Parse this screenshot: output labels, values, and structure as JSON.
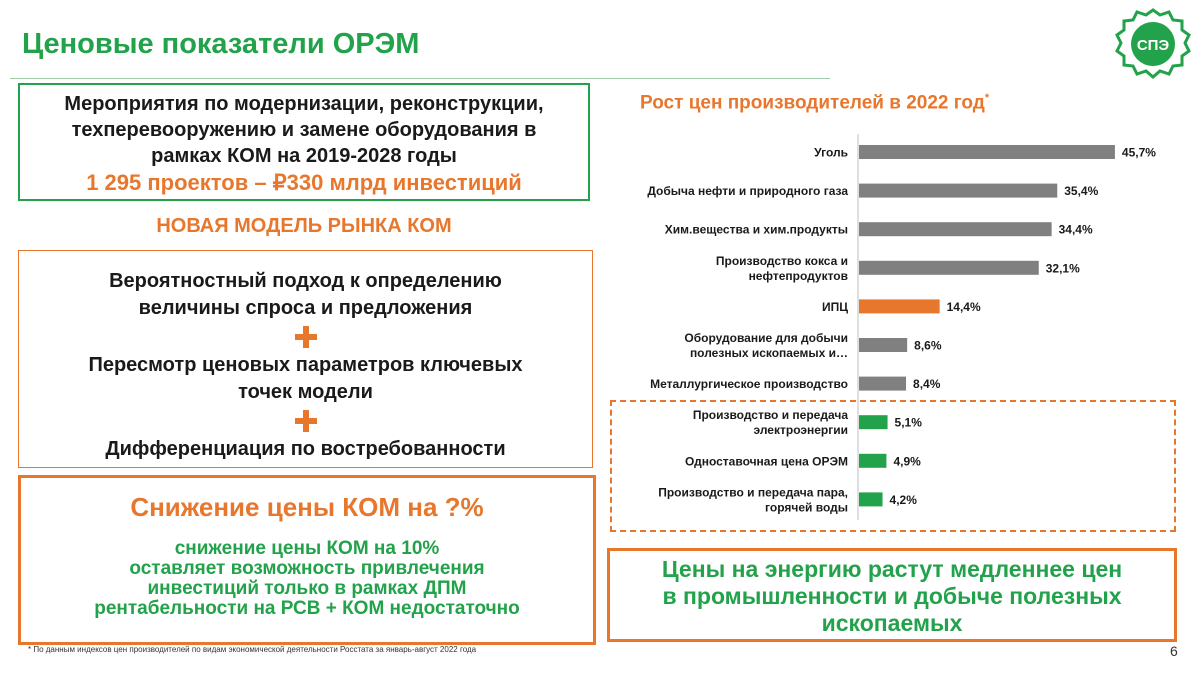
{
  "header": {
    "title": "Ценовые показатели ОРЭМ",
    "logo_text": "СПЭ"
  },
  "box1": {
    "lines": [
      "Мероприятия по модернизации, реконструкции,",
      "техперевооружению и замене оборудования в",
      "рамках КОМ на 2019-2028 годы"
    ],
    "highlight": "1 295 проектов – ₽330 млрд инвестиций"
  },
  "model_label": "НОВАЯ МОДЕЛЬ РЫНКА КОМ",
  "box2": {
    "item1_line1": "Вероятностный подход к определению",
    "item1_line2": "величины спроса и предложения",
    "item2_line1": "Пересмотр ценовых параметров ключевых",
    "item2_line2": "точек модели",
    "item3": "Дифференциация по востребованности"
  },
  "box3": {
    "title": "Снижение цены КОМ на ?%",
    "body_lines": [
      "снижение цены КОМ на 10%",
      "оставляет возможность привлечения",
      "инвестиций только в рамках ДПМ",
      "рентабельности на РСВ + КОМ недостаточно"
    ]
  },
  "box4": {
    "lines": [
      "Цены на энергию растут медленнее цен",
      "в промышленности и добыче полезных",
      "ископаемых"
    ]
  },
  "footnote": "* По данным индексов цен производителей по видам экономической деятельности Росстата за январь-август 2022 года",
  "page_number": "6",
  "colors": {
    "green": "#22a24a",
    "orange": "#e8772e",
    "gray": "#808080"
  },
  "chart_data": {
    "type": "bar",
    "orientation": "horizontal",
    "title": "Рост цен производителей в 2022 год",
    "title_mark": "*",
    "xlabel": "",
    "ylabel": "",
    "xlim": [
      0,
      50
    ],
    "grid": false,
    "categories": [
      [
        "Уголь"
      ],
      [
        "Добыча нефти и природного газа"
      ],
      [
        "Хим.вещества и хим.продукты"
      ],
      [
        "Производство кокса и",
        "нефтепродуктов"
      ],
      [
        "ИПЦ"
      ],
      [
        "Оборудование для добычи",
        "полезных ископаемых и…"
      ],
      [
        "Металлургическое производство"
      ],
      [
        "Производство и передача",
        "электроэнергии"
      ],
      [
        "Одноставочная цена ОРЭМ"
      ],
      [
        "Производство и передача пара,",
        "горячей воды"
      ]
    ],
    "values": [
      45.7,
      35.4,
      34.4,
      32.1,
      14.4,
      8.6,
      8.4,
      5.1,
      4.9,
      4.2
    ],
    "value_labels": [
      "45,7%",
      "35,4%",
      "34,4%",
      "32,1%",
      "14,4%",
      "8,6%",
      "8,4%",
      "5,1%",
      "4,9%",
      "4,2%"
    ],
    "bar_colors": [
      "#808080",
      "#808080",
      "#808080",
      "#808080",
      "#e8772e",
      "#808080",
      "#808080",
      "#22a24a",
      "#22a24a",
      "#22a24a"
    ]
  }
}
